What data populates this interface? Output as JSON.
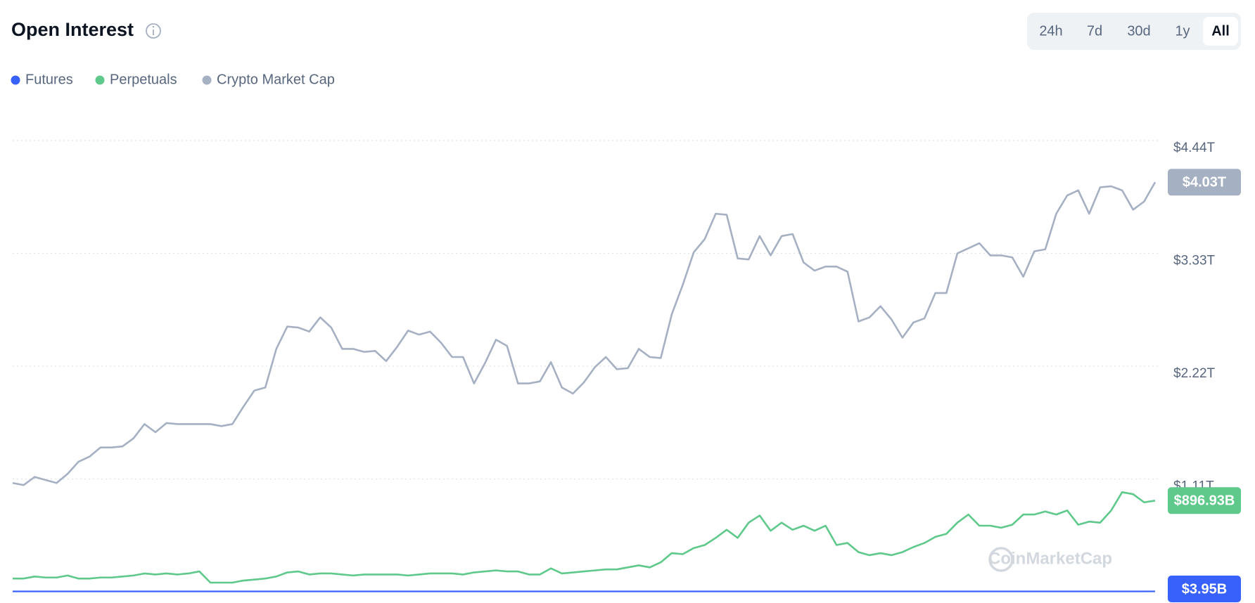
{
  "chart_data": {
    "type": "line",
    "title": "Open Interest",
    "time_ranges": [
      "24h",
      "7d",
      "30d",
      "1y",
      "All"
    ],
    "selected_range": "All",
    "watermark": "CoinMarketCap",
    "grid": true,
    "ylim": [
      0,
      4.44
    ],
    "yticks": [
      {
        "value": 1.11,
        "label": "$1.11T"
      },
      {
        "value": 2.22,
        "label": "$2.22T"
      },
      {
        "value": 3.33,
        "label": "$3.33T"
      },
      {
        "value": 4.44,
        "label": "$4.44T"
      }
    ],
    "series": [
      {
        "name": "Futures",
        "color": "#3861fb",
        "last_label": "$3.95B",
        "values": [
          0.0035,
          0.0035,
          0.0035,
          0.0035,
          0.0035,
          0.0035,
          0.0035,
          0.0035,
          0.0035,
          0.0035,
          0.0035,
          0.0035,
          0.0035,
          0.0035,
          0.0035,
          0.0035,
          0.0035,
          0.0035,
          0.0035,
          0.0035,
          0.0035,
          0.0035,
          0.0035,
          0.0035,
          0.0035,
          0.0035,
          0.0035,
          0.0035,
          0.0035,
          0.0035,
          0.0035,
          0.0035,
          0.0035,
          0.0035,
          0.0035,
          0.0035,
          0.0035,
          0.0035,
          0.0035,
          0.0035,
          0.0035,
          0.0035,
          0.0035,
          0.0035,
          0.0035,
          0.0035,
          0.0035,
          0.0035,
          0.0035,
          0.0035,
          0.0035,
          0.0035,
          0.0035,
          0.0035,
          0.0035,
          0.0035,
          0.0035,
          0.0035,
          0.0035,
          0.0035,
          0.0035,
          0.0035,
          0.0035,
          0.0035,
          0.0035,
          0.0035,
          0.0035,
          0.0035,
          0.0035,
          0.0035,
          0.0035,
          0.0035,
          0.0035,
          0.0035,
          0.0035,
          0.0035,
          0.0035,
          0.0035,
          0.0035,
          0.0035,
          0.0035,
          0.0035,
          0.0035,
          0.0035,
          0.0035,
          0.0035,
          0.0035,
          0.0035,
          0.0035,
          0.0035,
          0.0035,
          0.0035,
          0.0035,
          0.0035,
          0.0035,
          0.0035,
          0.0035,
          0.0035,
          0.0035,
          0.0035,
          0.0035,
          0.0035,
          0.0035,
          0.0035,
          0.00395
        ]
      },
      {
        "name": "Perpetuals",
        "color": "#5ec98a",
        "last_label": "$896.93B",
        "values": [
          0.13,
          0.13,
          0.15,
          0.14,
          0.14,
          0.16,
          0.13,
          0.13,
          0.14,
          0.14,
          0.15,
          0.16,
          0.18,
          0.17,
          0.18,
          0.17,
          0.18,
          0.2,
          0.09,
          0.09,
          0.09,
          0.11,
          0.12,
          0.13,
          0.15,
          0.19,
          0.2,
          0.17,
          0.18,
          0.18,
          0.17,
          0.16,
          0.17,
          0.17,
          0.17,
          0.17,
          0.16,
          0.17,
          0.18,
          0.18,
          0.18,
          0.17,
          0.19,
          0.2,
          0.21,
          0.2,
          0.2,
          0.17,
          0.17,
          0.23,
          0.18,
          0.19,
          0.2,
          0.21,
          0.22,
          0.22,
          0.24,
          0.26,
          0.24,
          0.29,
          0.38,
          0.37,
          0.43,
          0.46,
          0.53,
          0.61,
          0.53,
          0.68,
          0.75,
          0.6,
          0.68,
          0.61,
          0.65,
          0.6,
          0.65,
          0.46,
          0.48,
          0.39,
          0.36,
          0.38,
          0.36,
          0.39,
          0.44,
          0.48,
          0.54,
          0.57,
          0.68,
          0.76,
          0.65,
          0.65,
          0.63,
          0.66,
          0.76,
          0.76,
          0.79,
          0.76,
          0.8,
          0.66,
          0.69,
          0.68,
          0.8,
          0.98,
          0.96,
          0.88,
          0.89693
        ]
      },
      {
        "name": "Crypto Market Cap",
        "color": "#a6b0c3",
        "last_label": "$4.03T",
        "values": [
          1.07,
          1.05,
          1.13,
          1.1,
          1.07,
          1.16,
          1.28,
          1.33,
          1.42,
          1.42,
          1.43,
          1.51,
          1.65,
          1.57,
          1.66,
          1.65,
          1.65,
          1.65,
          1.65,
          1.63,
          1.65,
          1.82,
          1.98,
          2.01,
          2.39,
          2.61,
          2.6,
          2.56,
          2.7,
          2.6,
          2.39,
          2.39,
          2.36,
          2.37,
          2.27,
          2.41,
          2.57,
          2.53,
          2.56,
          2.45,
          2.31,
          2.31,
          2.05,
          2.25,
          2.48,
          2.42,
          2.05,
          2.05,
          2.07,
          2.26,
          2.01,
          1.95,
          2.06,
          2.21,
          2.31,
          2.19,
          2.2,
          2.39,
          2.31,
          2.3,
          2.73,
          3.02,
          3.34,
          3.47,
          3.72,
          3.71,
          3.28,
          3.27,
          3.5,
          3.31,
          3.5,
          3.52,
          3.24,
          3.16,
          3.2,
          3.2,
          3.15,
          2.66,
          2.7,
          2.81,
          2.68,
          2.5,
          2.65,
          2.69,
          2.94,
          2.94,
          3.33,
          3.38,
          3.43,
          3.31,
          3.31,
          3.29,
          3.1,
          3.35,
          3.37,
          3.72,
          3.9,
          3.95,
          3.72,
          3.98,
          3.99,
          3.95,
          3.76,
          3.84,
          4.03
        ]
      }
    ]
  }
}
